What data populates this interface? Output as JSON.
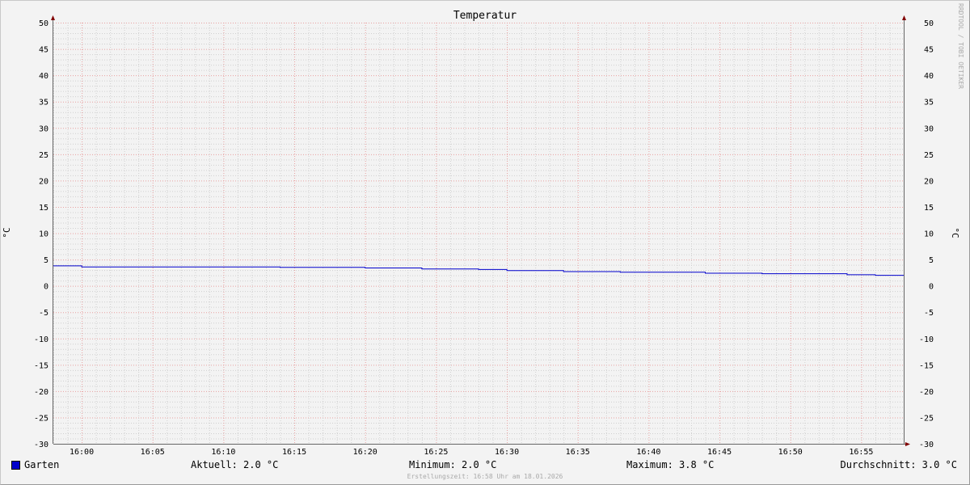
{
  "chart_data": {
    "type": "line",
    "title": "Temperatur",
    "ylabel": "°C",
    "ylabel_right": "°C",
    "xlabel": "",
    "ylim": [
      -30,
      50
    ],
    "yticks": [
      -30,
      -25,
      -20,
      -15,
      -10,
      -5,
      0,
      5,
      10,
      15,
      20,
      25,
      30,
      35,
      40,
      45,
      50
    ],
    "xlim": [
      "15:58",
      "16:58"
    ],
    "xticks": [
      "16:00",
      "16:05",
      "16:10",
      "16:15",
      "16:20",
      "16:25",
      "16:30",
      "16:35",
      "16:40",
      "16:45",
      "16:50",
      "16:55"
    ],
    "grid": true,
    "step": true,
    "series": [
      {
        "name": "Garten",
        "color": "#0000cc",
        "points": [
          {
            "x": "15:58",
            "y": 3.8
          },
          {
            "x": "16:00",
            "y": 3.6
          },
          {
            "x": "16:14",
            "y": 3.5
          },
          {
            "x": "16:20",
            "y": 3.4
          },
          {
            "x": "16:24",
            "y": 3.2
          },
          {
            "x": "16:28",
            "y": 3.1
          },
          {
            "x": "16:30",
            "y": 2.9
          },
          {
            "x": "16:34",
            "y": 2.7
          },
          {
            "x": "16:38",
            "y": 2.6
          },
          {
            "x": "16:44",
            "y": 2.4
          },
          {
            "x": "16:48",
            "y": 2.3
          },
          {
            "x": "16:54",
            "y": 2.1
          },
          {
            "x": "16:56",
            "y": 2.0
          }
        ],
        "end": "16:58"
      }
    ]
  },
  "legend": {
    "series_name": "Garten",
    "current": "Aktuell: 2.0 °C",
    "minimum": "Minimum: 2.0 °C",
    "maximum": "Maximum: 3.8 °C",
    "average": "Durchschnitt: 3.0 °C"
  },
  "footer": "Erstellungszeit: 16:58 Uhr am 18.01.2026",
  "watermark": "RRDTOOL / TOBI OETIKER",
  "colors": {
    "grid_major": "#e8a0a0",
    "grid_minor": "#d0d0d0",
    "axis": "#800000"
  }
}
